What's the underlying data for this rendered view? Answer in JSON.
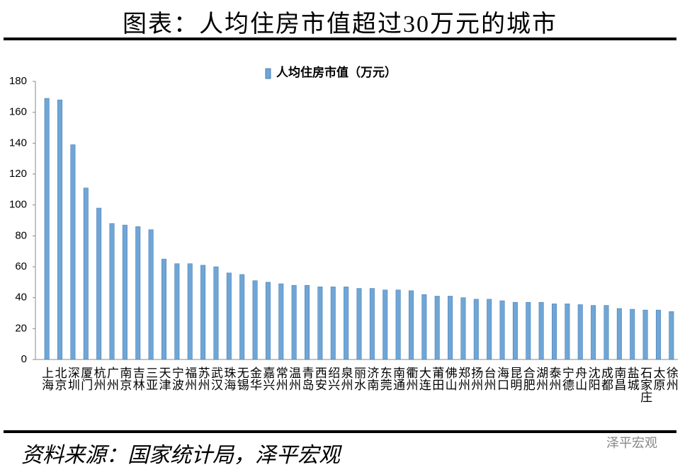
{
  "chart_data": {
    "type": "bar",
    "title": "图表：人均住房市值超过30万元的城市",
    "legend_label": "人均住房市值（万元）",
    "source": "资料来源：国家统计局，泽平宏观",
    "watermark": "泽平宏观",
    "color": "#6fa6d6",
    "categories": [
      "上海",
      "北京",
      "深圳",
      "厦门",
      "杭州",
      "广州",
      "南京",
      "吉林",
      "三亚",
      "天津",
      "宁波",
      "福州",
      "苏州",
      "武汉",
      "珠海",
      "无锡",
      "金华",
      "嘉兴",
      "常州",
      "温州",
      "青岛",
      "西安",
      "绍兴",
      "泉州",
      "丽水",
      "济南",
      "东莞",
      "南通",
      "衢州",
      "大连",
      "莆田",
      "佛山",
      "郑州",
      "扬州",
      "台州",
      "海口",
      "昆明",
      "合肥",
      "湖州",
      "泰州",
      "宁德",
      "舟山",
      "沈阳",
      "成都",
      "南昌",
      "盐城",
      "石家庄",
      "太原",
      "徐州"
    ],
    "values": [
      169,
      168,
      139,
      111,
      98,
      88,
      87,
      86,
      84,
      65,
      62,
      62,
      61,
      60,
      56,
      55,
      51,
      50,
      49,
      48,
      48,
      47,
      47,
      47,
      46,
      46,
      45,
      45,
      44.5,
      42,
      41,
      41,
      40,
      39,
      39,
      38,
      37,
      37,
      37,
      36,
      36,
      35.5,
      35,
      35,
      33,
      32.5,
      32,
      32,
      31
    ],
    "ylim": [
      0,
      180
    ],
    "yticks": [
      0,
      20,
      40,
      60,
      80,
      100,
      120,
      140,
      160,
      180
    ],
    "grid": false
  }
}
